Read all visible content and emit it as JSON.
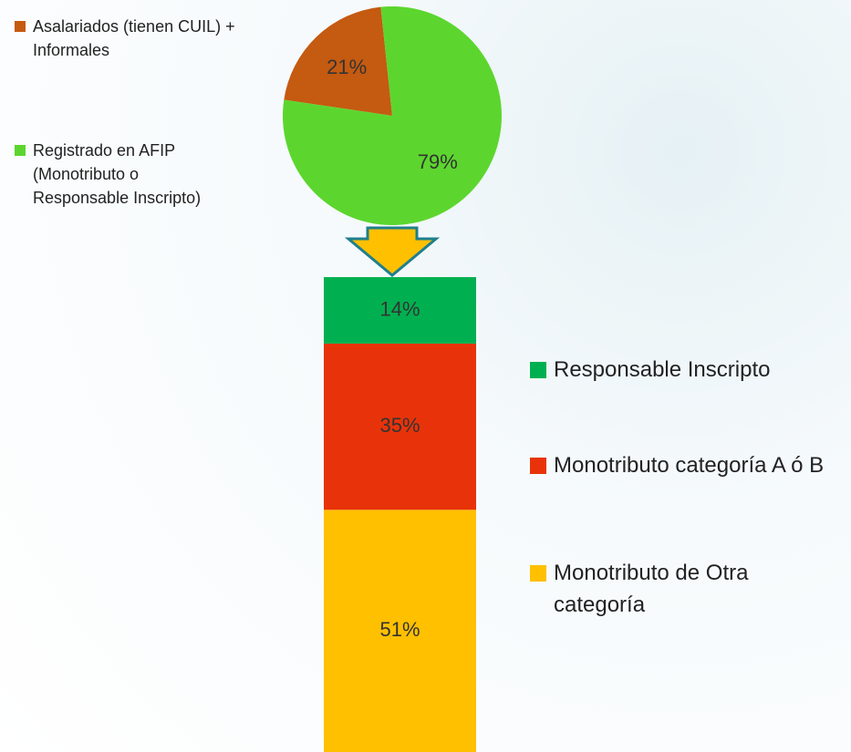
{
  "chart_data": [
    {
      "type": "pie",
      "categories": [
        "Asalariados (tienen CUIL) + Informales",
        "Registrado en AFIP (Monotributo o Responsable Inscripto)"
      ],
      "values": [
        21,
        79
      ],
      "value_labels": [
        "21%",
        "79%"
      ],
      "colors": [
        "#c55a11",
        "#5cd62e"
      ]
    },
    {
      "type": "bar",
      "stacked": true,
      "ylim": [
        0,
        100
      ],
      "series": [
        {
          "name": "Responsable Inscripto",
          "color": "#00b050",
          "values": [
            14
          ],
          "value_labels": [
            "14%"
          ]
        },
        {
          "name": "Monotributo categoría A ó B",
          "color": "#e8330a",
          "values": [
            35
          ],
          "value_labels": [
            "35%"
          ]
        },
        {
          "name": "Monotributo de Otra categoría",
          "color": "#ffc000",
          "values": [
            51
          ],
          "value_labels": [
            "51%"
          ]
        }
      ]
    }
  ]
}
